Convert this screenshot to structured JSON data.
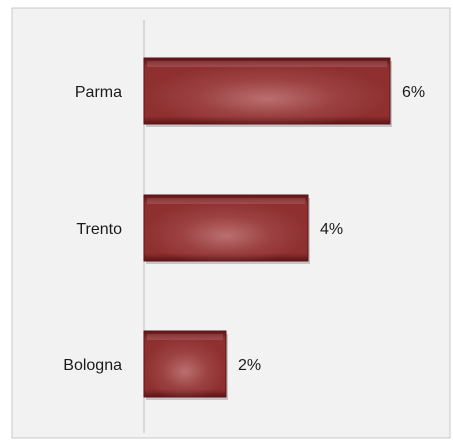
{
  "chart_data": {
    "type": "bar",
    "orientation": "horizontal",
    "categories": [
      "Parma",
      "Trento",
      "Bologna"
    ],
    "values": [
      6,
      4,
      2
    ],
    "value_labels": [
      "6%",
      "4%",
      "2%"
    ],
    "value_unit": "%",
    "title": "",
    "xlabel": "",
    "ylabel": "",
    "xlim": [
      0,
      7
    ],
    "grid": false,
    "legend": "none",
    "colors": {
      "background": "#f2f2f2",
      "frame": "#c8c8c8",
      "axis": "#d0d0d0",
      "bar_dark": "#5e1416",
      "bar_mid": "#8f2f30",
      "bar_light": "#c27a79",
      "text": "#1a1a1a"
    }
  }
}
